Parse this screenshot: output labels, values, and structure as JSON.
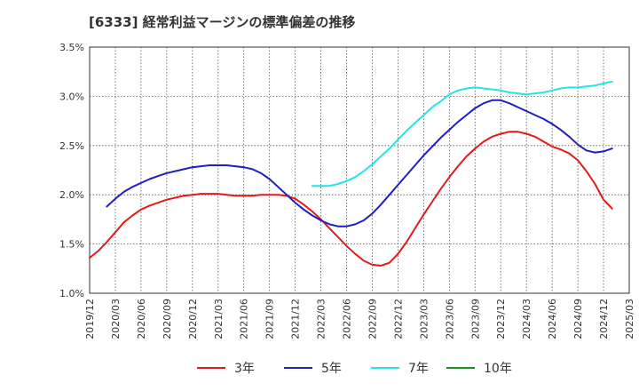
{
  "chart_data": {
    "type": "line",
    "title": "[6333]  経常利益マージンの標準偏差の推移",
    "xlabel": "",
    "ylabel": "",
    "ylim": [
      1.0,
      3.5
    ],
    "yticks": [
      "1.0%",
      "1.5%",
      "2.0%",
      "2.5%",
      "3.0%",
      "3.5%"
    ],
    "xlim": [
      "2019/12",
      "2025/03"
    ],
    "xticks": [
      "2019/12",
      "2020/03",
      "2020/06",
      "2020/09",
      "2020/12",
      "2021/03",
      "2021/06",
      "2021/09",
      "2021/12",
      "2022/03",
      "2022/06",
      "2022/09",
      "2022/12",
      "2023/03",
      "2023/06",
      "2023/09",
      "2023/12",
      "2024/03",
      "2024/06",
      "2024/09",
      "2024/12",
      "2025/03"
    ],
    "grid": true,
    "legend_position": "bottom",
    "series": [
      {
        "name": "3年",
        "color": "#e31a1a",
        "points": [
          [
            "2019/12",
            1.36
          ],
          [
            "2020/01",
            1.43
          ],
          [
            "2020/02",
            1.52
          ],
          [
            "2020/03",
            1.62
          ],
          [
            "2020/04",
            1.72
          ],
          [
            "2020/05",
            1.79
          ],
          [
            "2020/06",
            1.85
          ],
          [
            "2020/07",
            1.89
          ],
          [
            "2020/08",
            1.92
          ],
          [
            "2020/09",
            1.95
          ],
          [
            "2020/10",
            1.97
          ],
          [
            "2020/11",
            1.99
          ],
          [
            "2020/12",
            2.0
          ],
          [
            "2021/01",
            2.01
          ],
          [
            "2021/02",
            2.01
          ],
          [
            "2021/03",
            2.01
          ],
          [
            "2021/04",
            2.0
          ],
          [
            "2021/05",
            1.99
          ],
          [
            "2021/06",
            1.99
          ],
          [
            "2021/07",
            1.99
          ],
          [
            "2021/08",
            2.0
          ],
          [
            "2021/09",
            2.0
          ],
          [
            "2021/10",
            2.0
          ],
          [
            "2021/11",
            1.99
          ],
          [
            "2021/12",
            1.96
          ],
          [
            "2022/01",
            1.9
          ],
          [
            "2022/02",
            1.83
          ],
          [
            "2022/03",
            1.75
          ],
          [
            "2022/04",
            1.66
          ],
          [
            "2022/05",
            1.57
          ],
          [
            "2022/06",
            1.48
          ],
          [
            "2022/07",
            1.4
          ],
          [
            "2022/08",
            1.33
          ],
          [
            "2022/09",
            1.29
          ],
          [
            "2022/10",
            1.28
          ],
          [
            "2022/11",
            1.31
          ],
          [
            "2022/12",
            1.4
          ],
          [
            "2023/01",
            1.52
          ],
          [
            "2023/02",
            1.66
          ],
          [
            "2023/03",
            1.8
          ],
          [
            "2023/04",
            1.93
          ],
          [
            "2023/05",
            2.06
          ],
          [
            "2023/06",
            2.18
          ],
          [
            "2023/07",
            2.29
          ],
          [
            "2023/08",
            2.39
          ],
          [
            "2023/09",
            2.47
          ],
          [
            "2023/10",
            2.54
          ],
          [
            "2023/11",
            2.59
          ],
          [
            "2023/12",
            2.62
          ],
          [
            "2024/01",
            2.64
          ],
          [
            "2024/02",
            2.64
          ],
          [
            "2024/03",
            2.62
          ],
          [
            "2024/04",
            2.59
          ],
          [
            "2024/05",
            2.54
          ],
          [
            "2024/06",
            2.49
          ],
          [
            "2024/07",
            2.46
          ],
          [
            "2024/08",
            2.42
          ],
          [
            "2024/09",
            2.35
          ],
          [
            "2024/10",
            2.24
          ],
          [
            "2024/11",
            2.11
          ],
          [
            "2024/12",
            1.95
          ],
          [
            "2025/01",
            1.86
          ]
        ]
      },
      {
        "name": "5年",
        "color": "#1f1fbf",
        "points": [
          [
            "2020/02",
            1.88
          ],
          [
            "2020/03",
            1.96
          ],
          [
            "2020/04",
            2.03
          ],
          [
            "2020/05",
            2.08
          ],
          [
            "2020/06",
            2.12
          ],
          [
            "2020/07",
            2.16
          ],
          [
            "2020/08",
            2.19
          ],
          [
            "2020/09",
            2.22
          ],
          [
            "2020/10",
            2.24
          ],
          [
            "2020/11",
            2.26
          ],
          [
            "2020/12",
            2.28
          ],
          [
            "2021/01",
            2.29
          ],
          [
            "2021/02",
            2.3
          ],
          [
            "2021/03",
            2.3
          ],
          [
            "2021/04",
            2.3
          ],
          [
            "2021/05",
            2.29
          ],
          [
            "2021/06",
            2.28
          ],
          [
            "2021/07",
            2.26
          ],
          [
            "2021/08",
            2.22
          ],
          [
            "2021/09",
            2.16
          ],
          [
            "2021/10",
            2.08
          ],
          [
            "2021/11",
            2.0
          ],
          [
            "2021/12",
            1.92
          ],
          [
            "2022/01",
            1.85
          ],
          [
            "2022/02",
            1.79
          ],
          [
            "2022/03",
            1.74
          ],
          [
            "2022/04",
            1.7
          ],
          [
            "2022/05",
            1.68
          ],
          [
            "2022/06",
            1.68
          ],
          [
            "2022/07",
            1.7
          ],
          [
            "2022/08",
            1.74
          ],
          [
            "2022/09",
            1.81
          ],
          [
            "2022/10",
            1.9
          ],
          [
            "2022/11",
            2.0
          ],
          [
            "2022/12",
            2.1
          ],
          [
            "2023/01",
            2.2
          ],
          [
            "2023/02",
            2.3
          ],
          [
            "2023/03",
            2.4
          ],
          [
            "2023/04",
            2.49
          ],
          [
            "2023/05",
            2.58
          ],
          [
            "2023/06",
            2.66
          ],
          [
            "2023/07",
            2.74
          ],
          [
            "2023/08",
            2.81
          ],
          [
            "2023/09",
            2.88
          ],
          [
            "2023/10",
            2.93
          ],
          [
            "2023/11",
            2.96
          ],
          [
            "2023/12",
            2.96
          ],
          [
            "2024/01",
            2.93
          ],
          [
            "2024/02",
            2.89
          ],
          [
            "2024/03",
            2.85
          ],
          [
            "2024/04",
            2.81
          ],
          [
            "2024/05",
            2.77
          ],
          [
            "2024/06",
            2.72
          ],
          [
            "2024/07",
            2.66
          ],
          [
            "2024/08",
            2.59
          ],
          [
            "2024/09",
            2.51
          ],
          [
            "2024/10",
            2.45
          ],
          [
            "2024/11",
            2.43
          ],
          [
            "2024/12",
            2.44
          ],
          [
            "2025/01",
            2.47
          ]
        ]
      },
      {
        "name": "7年",
        "color": "#22e5e5",
        "points": [
          [
            "2022/02",
            2.09
          ],
          [
            "2022/03",
            2.09
          ],
          [
            "2022/04",
            2.09
          ],
          [
            "2022/05",
            2.11
          ],
          [
            "2022/06",
            2.14
          ],
          [
            "2022/07",
            2.18
          ],
          [
            "2022/08",
            2.24
          ],
          [
            "2022/09",
            2.31
          ],
          [
            "2022/10",
            2.39
          ],
          [
            "2022/11",
            2.47
          ],
          [
            "2022/12",
            2.56
          ],
          [
            "2023/01",
            2.65
          ],
          [
            "2023/02",
            2.73
          ],
          [
            "2023/03",
            2.81
          ],
          [
            "2023/04",
            2.89
          ],
          [
            "2023/05",
            2.95
          ],
          [
            "2023/06",
            3.02
          ],
          [
            "2023/07",
            3.06
          ],
          [
            "2023/08",
            3.08
          ],
          [
            "2023/09",
            3.09
          ],
          [
            "2023/10",
            3.08
          ],
          [
            "2023/11",
            3.07
          ],
          [
            "2023/12",
            3.06
          ],
          [
            "2024/01",
            3.04
          ],
          [
            "2024/02",
            3.03
          ],
          [
            "2024/03",
            3.02
          ],
          [
            "2024/04",
            3.03
          ],
          [
            "2024/05",
            3.04
          ],
          [
            "2024/06",
            3.06
          ],
          [
            "2024/07",
            3.08
          ],
          [
            "2024/08",
            3.09
          ],
          [
            "2024/09",
            3.09
          ],
          [
            "2024/10",
            3.1
          ],
          [
            "2024/11",
            3.11
          ],
          [
            "2024/12",
            3.13
          ],
          [
            "2025/01",
            3.15
          ]
        ]
      },
      {
        "name": "10年",
        "color": "#1a8f1a",
        "points": []
      }
    ]
  }
}
